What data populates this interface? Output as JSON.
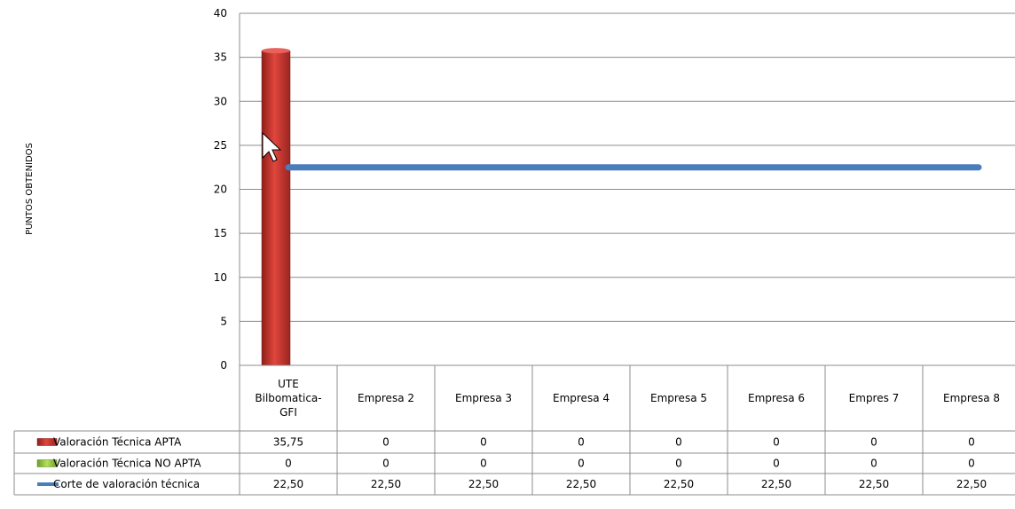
{
  "chart_data": {
    "type": "bar",
    "ylabel": "PUNTOS  OBTENIDOS",
    "ylim": [
      0,
      40
    ],
    "yticks": [
      "0",
      "5",
      "10",
      "15",
      "20",
      "25",
      "30",
      "35",
      "40"
    ],
    "ytick_values": [
      0,
      5,
      10,
      15,
      20,
      25,
      30,
      35,
      40
    ],
    "categories": [
      [
        "UTE",
        "Bilbomatica-",
        "GFI"
      ],
      [
        "Empresa 2"
      ],
      [
        "Empresa 3"
      ],
      [
        "Empresa 4"
      ],
      [
        "Empresa 5"
      ],
      [
        "Empresa 6"
      ],
      [
        "Empres 7"
      ],
      [
        "Empresa 8"
      ]
    ],
    "series": [
      {
        "name": "Valoración Técnica APTA",
        "kind": "bar",
        "color": "#c0392b",
        "values": [
          35.75,
          0,
          0,
          0,
          0,
          0,
          0,
          0
        ],
        "labels": [
          "35,75",
          "0",
          "0",
          "0",
          "0",
          "0",
          "0",
          "0"
        ]
      },
      {
        "name": "Valoración Técnica NO APTA",
        "kind": "bar",
        "color": "#8bc34a",
        "values": [
          0,
          0,
          0,
          0,
          0,
          0,
          0,
          0
        ],
        "labels": [
          "0",
          "0",
          "0",
          "0",
          "0",
          "0",
          "0",
          "0"
        ]
      },
      {
        "name": "Corte de valoración técnica",
        "kind": "line",
        "color": "#4a7ebb",
        "values": [
          22.5,
          22.5,
          22.5,
          22.5,
          22.5,
          22.5,
          22.5,
          22.5
        ],
        "labels": [
          "22,50",
          "22,50",
          "22,50",
          "22,50",
          "22,50",
          "22,50",
          "22,50",
          "22,50"
        ]
      }
    ],
    "grid": true,
    "legend": "data-table"
  }
}
